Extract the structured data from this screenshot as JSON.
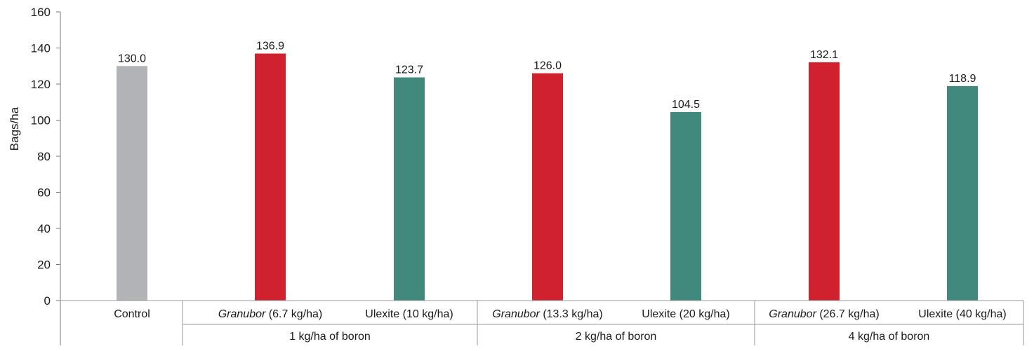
{
  "chart_data": {
    "type": "bar",
    "title": "",
    "xlabel": "",
    "ylabel": "Bags/ha",
    "ylim": [
      0,
      160
    ],
    "yticks": [
      0,
      20,
      40,
      60,
      80,
      100,
      120,
      140,
      160
    ],
    "grid": false,
    "legend": "none",
    "categories": [
      {
        "label": "Control",
        "italic_part": "",
        "rest": "Control",
        "group": 0
      },
      {
        "label": "Granubor (6.7 kg/ha)",
        "italic_part": "Granubor",
        "rest": " (6.7 kg/ha)",
        "group": 1
      },
      {
        "label": "Ulexite (10 kg/ha)",
        "italic_part": "",
        "rest": "Ulexite (10 kg/ha)",
        "group": 1
      },
      {
        "label": "Granubor (13.3 kg/ha)",
        "italic_part": "Granubor",
        "rest": " (13.3 kg/ha)",
        "group": 2
      },
      {
        "label": "Ulexite (20 kg/ha)",
        "italic_part": "",
        "rest": "Ulexite (20 kg/ha)",
        "group": 2
      },
      {
        "label": "Granubor (26.7 kg/ha)",
        "italic_part": "Granubor",
        "rest": " (26.7 kg/ha)",
        "group": 3
      },
      {
        "label": "Ulexite (40 kg/ha)",
        "italic_part": "",
        "rest": "Ulexite (40 kg/ha)",
        "group": 3
      }
    ],
    "values": [
      130.0,
      136.9,
      123.7,
      126.0,
      104.5,
      132.1,
      118.9
    ],
    "value_labels": [
      "130.0",
      "136.9",
      "123.7",
      "126.0",
      "104.5",
      "132.1",
      "118.9"
    ],
    "bar_colors": [
      "#b1b3b6",
      "#d0222e",
      "#41897d",
      "#d0222e",
      "#41897d",
      "#d0222e",
      "#41897d"
    ],
    "groups": [
      "",
      "1 kg/ha of boron",
      "2 kg/ha of boron",
      "4 kg/ha of boron"
    ]
  }
}
